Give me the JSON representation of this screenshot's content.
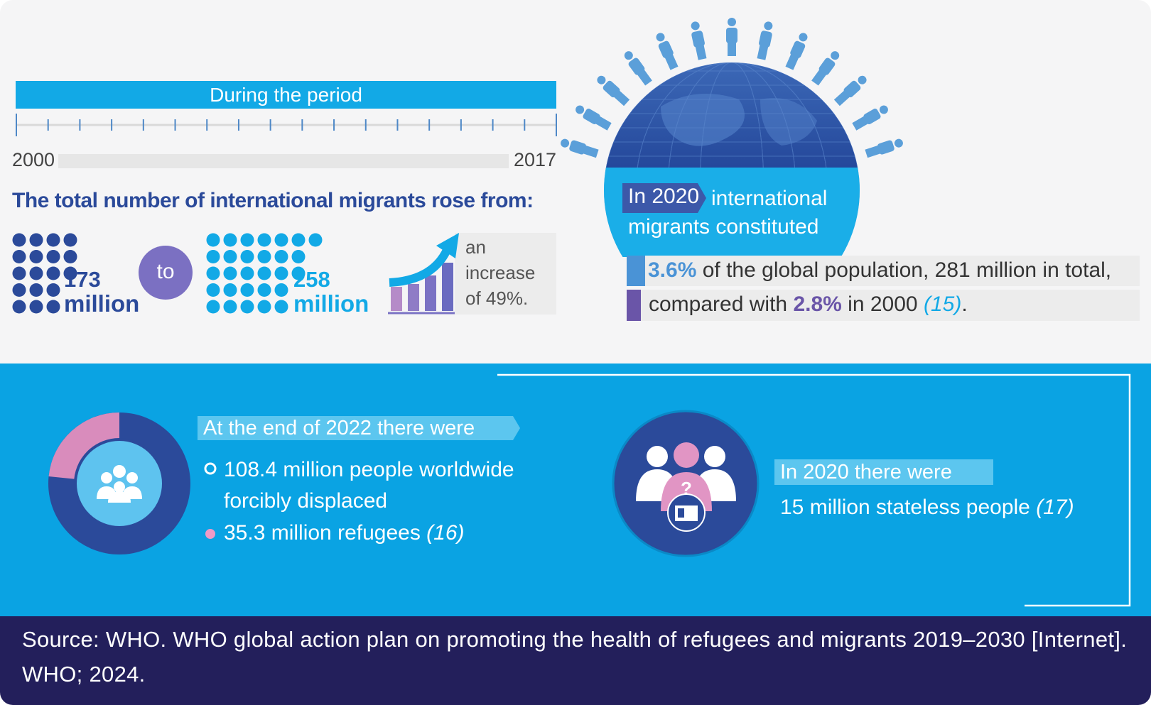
{
  "timeline": {
    "title": "During the period",
    "start": "2000",
    "end": "2017"
  },
  "migrants": {
    "heading": "The total number of international migrants rose from:",
    "from_value": "173",
    "from_unit": "million",
    "connector": "to",
    "to_value": "258",
    "to_unit": "million",
    "increase": "an increase of 49%."
  },
  "globe": {
    "badge": "In 2020",
    "text": "international migrants constituted"
  },
  "share": {
    "line1_value": "3.6%",
    "line1_text": "of the global population, 281 million in total,",
    "line2_text": "compared with",
    "line2_value": "2.8%",
    "line2_after": "in 2000",
    "line2_ref": "(15)",
    "line2_end": "."
  },
  "displaced": {
    "heading": "At the end of 2022 there were",
    "items": [
      {
        "text": "108.4 million people worldwide forcibly displaced"
      },
      {
        "text": "35.3 million refugees",
        "ref": "(16)"
      }
    ]
  },
  "stateless": {
    "heading": "In 2020 there were",
    "text": "15 million stateless people",
    "ref": "(17)"
  },
  "source": "Source: WHO. WHO global action plan on promoting the health of refugees and migrants 2019–2030 [Internet]. WHO; 2024."
}
